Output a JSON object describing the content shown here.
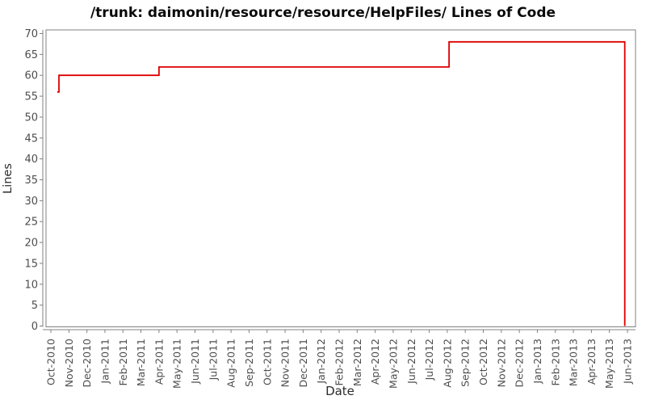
{
  "chart_data": {
    "type": "line",
    "subtype": "step",
    "title": "/trunk: daimonin/resource/resource/HelpFiles/ Lines of Code",
    "xlabel": "Date",
    "ylabel": "Lines",
    "legend": "none",
    "grid": false,
    "x_unit": "months since Oct-2010 tick (fractional = position within month)",
    "x_tick_labels": [
      "Oct-2010",
      "Nov-2010",
      "Dec-2010",
      "Jan-2011",
      "Feb-2011",
      "Mar-2011",
      "Apr-2011",
      "May-2011",
      "Jun-2011",
      "Jul-2011",
      "Aug-2011",
      "Sep-2011",
      "Oct-2011",
      "Nov-2011",
      "Dec-2011",
      "Jan-2012",
      "Feb-2012",
      "Mar-2012",
      "Apr-2012",
      "May-2012",
      "Jun-2012",
      "Jul-2012",
      "Aug-2012",
      "Sep-2012",
      "Oct-2012",
      "Nov-2012",
      "Dec-2012",
      "Jan-2013",
      "Feb-2013",
      "Mar-2013",
      "Apr-2013",
      "May-2013",
      "Jun-2013"
    ],
    "y_ticks": [
      0,
      5,
      10,
      15,
      20,
      25,
      30,
      35,
      40,
      45,
      50,
      55,
      60,
      65,
      70
    ],
    "ylim": [
      0,
      71
    ],
    "xlim_months": [
      -0.27,
      32.45
    ],
    "series": [
      {
        "name": "Lines of Code",
        "color": "#dd0000",
        "points_month_value": [
          [
            0.35,
            56
          ],
          [
            0.45,
            56
          ],
          [
            0.45,
            60
          ],
          [
            6.0,
            60
          ],
          [
            6.0,
            62
          ],
          [
            22.1,
            62
          ],
          [
            22.1,
            68
          ],
          [
            31.85,
            68
          ],
          [
            31.85,
            0
          ]
        ],
        "steps_readable": [
          {
            "from": "mid Oct-2010",
            "value": 56
          },
          {
            "from": "late Oct-2010",
            "value": 60
          },
          {
            "from": "Apr-2011",
            "value": 62
          },
          {
            "from": "Aug-2012",
            "value": 68
          },
          {
            "from": "late May-2013",
            "value": 0
          }
        ]
      }
    ],
    "colors": {
      "line": "#dd0000",
      "plot_border": "#808080",
      "axis_line": "#808080",
      "tick_label": "#4d4d4d",
      "axis_title": "#2b2b2b",
      "title": "#0a0a0a",
      "background": "#ffffff"
    }
  }
}
